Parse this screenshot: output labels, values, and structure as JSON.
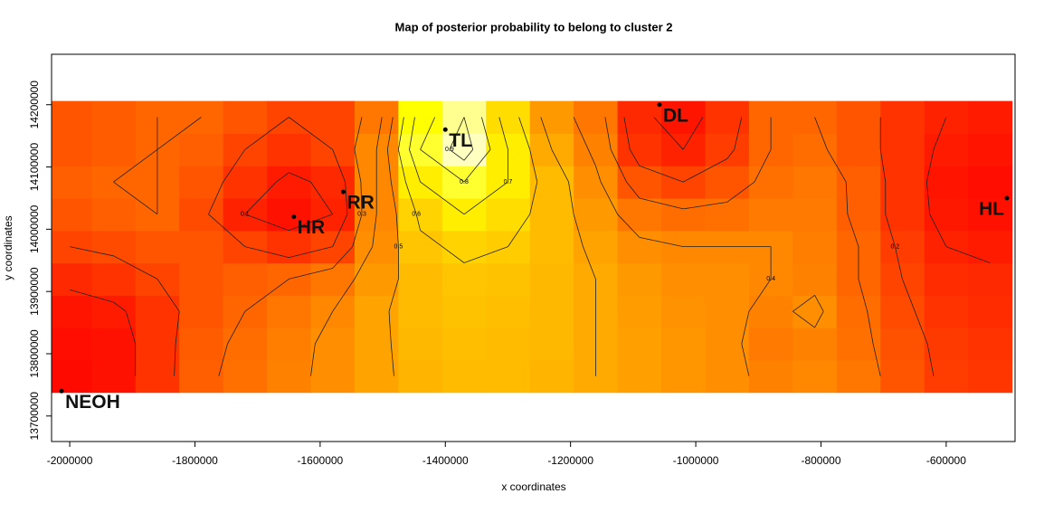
{
  "chart_data": {
    "type": "heatmap",
    "title": "Map of posterior probability to belong to cluster  2",
    "xlabel": "x coordinates",
    "ylabel": "y coordinates",
    "xlim": [
      -2029000,
      -490000
    ],
    "ylim": [
      13659000,
      14281000
    ],
    "xticks": [
      -2000000,
      -1800000,
      -1600000,
      -1400000,
      -1200000,
      -1000000,
      -800000,
      -600000
    ],
    "yticks": [
      13700000,
      13800000,
      13900000,
      14000000,
      14100000,
      14200000
    ],
    "colorscale": [
      [
        0,
        "#FF0000"
      ],
      [
        0.75,
        "#FFFF00"
      ],
      [
        1,
        "#FFFFF0"
      ]
    ],
    "x": [
      -2000000,
      -1930000,
      -1860000,
      -1790000,
      -1720000,
      -1650000,
      -1580000,
      -1510000,
      -1440000,
      -1370000,
      -1300000,
      -1230000,
      -1160000,
      -1090000,
      -1020000,
      -950000,
      -880000,
      -810000,
      -740000,
      -670000,
      -600000,
      -530000
    ],
    "y": [
      13764000,
      13816000,
      13868000,
      13920000,
      13972000,
      14024000,
      14076000,
      14128000,
      14180000
    ],
    "z": [
      [
        0.03,
        0.05,
        0.15,
        0.28,
        0.33,
        0.38,
        0.42,
        0.48,
        0.53,
        0.55,
        0.55,
        0.53,
        0.5,
        0.47,
        0.44,
        0.42,
        0.38,
        0.4,
        0.35,
        0.25,
        0.18,
        0.16
      ],
      [
        0.04,
        0.05,
        0.15,
        0.27,
        0.32,
        0.37,
        0.42,
        0.48,
        0.54,
        0.56,
        0.55,
        0.54,
        0.5,
        0.47,
        0.44,
        0.42,
        0.36,
        0.38,
        0.33,
        0.24,
        0.17,
        0.15
      ],
      [
        0.06,
        0.08,
        0.15,
        0.25,
        0.3,
        0.35,
        0.4,
        0.48,
        0.55,
        0.57,
        0.56,
        0.54,
        0.5,
        0.46,
        0.43,
        0.42,
        0.38,
        0.42,
        0.32,
        0.22,
        0.15,
        0.13
      ],
      [
        0.12,
        0.15,
        0.2,
        0.25,
        0.28,
        0.3,
        0.35,
        0.45,
        0.55,
        0.58,
        0.57,
        0.54,
        0.5,
        0.45,
        0.42,
        0.42,
        0.4,
        0.38,
        0.3,
        0.2,
        0.13,
        0.12
      ],
      [
        0.2,
        0.22,
        0.25,
        0.25,
        0.2,
        0.15,
        0.2,
        0.42,
        0.58,
        0.62,
        0.6,
        0.55,
        0.48,
        0.42,
        0.4,
        0.4,
        0.4,
        0.37,
        0.3,
        0.18,
        0.1,
        0.08
      ],
      [
        0.25,
        0.28,
        0.3,
        0.22,
        0.1,
        0.05,
        0.1,
        0.4,
        0.62,
        0.7,
        0.65,
        0.55,
        0.45,
        0.35,
        0.32,
        0.33,
        0.36,
        0.36,
        0.28,
        0.15,
        0.07,
        0.05
      ],
      [
        0.28,
        0.3,
        0.3,
        0.25,
        0.15,
        0.08,
        0.12,
        0.4,
        0.7,
        0.8,
        0.7,
        0.55,
        0.42,
        0.25,
        0.2,
        0.25,
        0.33,
        0.35,
        0.28,
        0.15,
        0.06,
        0.04
      ],
      [
        0.25,
        0.27,
        0.3,
        0.28,
        0.2,
        0.15,
        0.2,
        0.4,
        0.8,
        0.95,
        0.7,
        0.5,
        0.38,
        0.15,
        0.1,
        0.18,
        0.3,
        0.32,
        0.25,
        0.15,
        0.08,
        0.06
      ],
      [
        0.25,
        0.27,
        0.3,
        0.3,
        0.25,
        0.2,
        0.2,
        0.35,
        0.75,
        0.9,
        0.65,
        0.45,
        0.35,
        0.12,
        0.06,
        0.15,
        0.3,
        0.3,
        0.25,
        0.15,
        0.1,
        0.08
      ]
    ],
    "contour_levels": [
      0.1,
      0.2,
      0.3,
      0.4,
      0.5,
      0.6,
      0.7,
      0.8,
      0.9
    ],
    "sites": [
      {
        "name": "NEOH",
        "x": -2013000,
        "y": 13740000
      },
      {
        "name": "HR",
        "x": -1642000,
        "y": 14020000
      },
      {
        "name": "RR",
        "x": -1563000,
        "y": 14060000
      },
      {
        "name": "TL",
        "x": -1400000,
        "y": 14160000
      },
      {
        "name": "DL",
        "x": -1058000,
        "y": 14200000
      },
      {
        "name": "HL",
        "x": -503000,
        "y": 14050000
      }
    ]
  }
}
